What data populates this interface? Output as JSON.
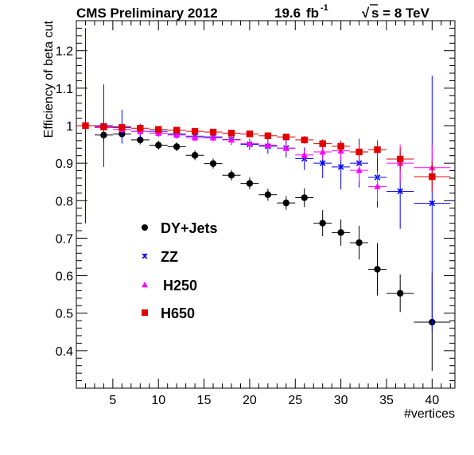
{
  "chart_data": {
    "type": "scatter",
    "title_parts": {
      "experiment": "CMS Preliminary 2012",
      "lumi_value": "19.6",
      "lumi_unit": "fb",
      "lumi_exp": "-1",
      "energy_sqrt": "√",
      "energy_rest": "s = 8 TeV"
    },
    "xlabel": "#vertices",
    "ylabel": "Efficiency of beta cut",
    "xlim": [
      1,
      42.5
    ],
    "ylim": [
      0.3,
      1.28
    ],
    "x_ticks": [
      5,
      10,
      15,
      20,
      25,
      30,
      35,
      40
    ],
    "y_ticks": [
      0.4,
      0.5,
      0.6,
      0.7,
      0.8,
      0.9,
      1,
      1.1,
      1.2
    ],
    "legend_position": "center-left",
    "grid": false,
    "series": [
      {
        "name": "DY+Jets",
        "marker": "circle",
        "color": "#000000",
        "points": [
          {
            "x": 2,
            "y": 1.0,
            "xerr": 1,
            "yerr": 0.26
          },
          {
            "x": 4,
            "y": 0.975,
            "xerr": 1,
            "yerr": 0.02
          },
          {
            "x": 6,
            "y": 0.978,
            "xerr": 1,
            "yerr": 0.012
          },
          {
            "x": 8,
            "y": 0.962,
            "xerr": 1,
            "yerr": 0.012
          },
          {
            "x": 10,
            "y": 0.948,
            "xerr": 1,
            "yerr": 0.012
          },
          {
            "x": 12,
            "y": 0.944,
            "xerr": 1,
            "yerr": 0.012
          },
          {
            "x": 14,
            "y": 0.921,
            "xerr": 1,
            "yerr": 0.013
          },
          {
            "x": 16,
            "y": 0.899,
            "xerr": 1,
            "yerr": 0.013
          },
          {
            "x": 18,
            "y": 0.868,
            "xerr": 1,
            "yerr": 0.014
          },
          {
            "x": 20,
            "y": 0.846,
            "xerr": 1,
            "yerr": 0.016
          },
          {
            "x": 22,
            "y": 0.816,
            "xerr": 1,
            "yerr": 0.016
          },
          {
            "x": 24,
            "y": 0.794,
            "xerr": 1,
            "yerr": 0.018
          },
          {
            "x": 26,
            "y": 0.808,
            "xerr": 1,
            "yerr": 0.025
          },
          {
            "x": 28,
            "y": 0.74,
            "xerr": 1,
            "yerr": 0.035
          },
          {
            "x": 30,
            "y": 0.715,
            "xerr": 1,
            "yerr": 0.035
          },
          {
            "x": 32,
            "y": 0.688,
            "xerr": 1,
            "yerr": 0.045
          },
          {
            "x": 34,
            "y": 0.617,
            "xerr": 1,
            "yerr": 0.07
          },
          {
            "x": 36.5,
            "y": 0.553,
            "xerr": 1.5,
            "yerr": 0.05
          },
          {
            "x": 40,
            "y": 0.476,
            "xerr": 2,
            "yerr": 0.13
          }
        ]
      },
      {
        "name": "ZZ",
        "marker": "star",
        "color": "#0000ff",
        "points": [
          {
            "x": 2,
            "y": 1.0,
            "xerr": 1,
            "yerr": 0.26
          },
          {
            "x": 4,
            "y": 1.0,
            "xerr": 1,
            "yerr": 0.11
          },
          {
            "x": 6,
            "y": 0.997,
            "xerr": 1,
            "yerr": 0.045
          },
          {
            "x": 8,
            "y": 0.985,
            "xerr": 1,
            "yerr": 0.02
          },
          {
            "x": 10,
            "y": 0.985,
            "xerr": 1,
            "yerr": 0.013
          },
          {
            "x": 12,
            "y": 0.978,
            "xerr": 1,
            "yerr": 0.012
          },
          {
            "x": 14,
            "y": 0.972,
            "xerr": 1,
            "yerr": 0.012
          },
          {
            "x": 16,
            "y": 0.97,
            "xerr": 1,
            "yerr": 0.012
          },
          {
            "x": 18,
            "y": 0.963,
            "xerr": 1,
            "yerr": 0.014
          },
          {
            "x": 20,
            "y": 0.95,
            "xerr": 1,
            "yerr": 0.015
          },
          {
            "x": 22,
            "y": 0.945,
            "xerr": 1,
            "yerr": 0.02
          },
          {
            "x": 24,
            "y": 0.94,
            "xerr": 1,
            "yerr": 0.025
          },
          {
            "x": 26,
            "y": 0.912,
            "xerr": 1,
            "yerr": 0.03
          },
          {
            "x": 28,
            "y": 0.9,
            "xerr": 1,
            "yerr": 0.04
          },
          {
            "x": 30,
            "y": 0.89,
            "xerr": 1,
            "yerr": 0.06
          },
          {
            "x": 32,
            "y": 0.9,
            "xerr": 1,
            "yerr": 0.065
          },
          {
            "x": 34,
            "y": 0.862,
            "xerr": 1,
            "yerr": 0.08
          },
          {
            "x": 36.5,
            "y": 0.825,
            "xerr": 1.5,
            "yerr": 0.1
          },
          {
            "x": 40,
            "y": 0.793,
            "xerr": 2,
            "yerr": 0.34
          }
        ]
      },
      {
        "name": "H250",
        "marker": "triangle",
        "color": "#ff00ff",
        "points": [
          {
            "x": 2,
            "y": 1.0,
            "xerr": 1,
            "yerr": 0.01
          },
          {
            "x": 4,
            "y": 0.995,
            "xerr": 1,
            "yerr": 0.01
          },
          {
            "x": 6,
            "y": 0.99,
            "xerr": 1,
            "yerr": 0.01
          },
          {
            "x": 8,
            "y": 0.985,
            "xerr": 1,
            "yerr": 0.01
          },
          {
            "x": 10,
            "y": 0.98,
            "xerr": 1,
            "yerr": 0.01
          },
          {
            "x": 12,
            "y": 0.975,
            "xerr": 1,
            "yerr": 0.01
          },
          {
            "x": 14,
            "y": 0.968,
            "xerr": 1,
            "yerr": 0.01
          },
          {
            "x": 16,
            "y": 0.968,
            "xerr": 1,
            "yerr": 0.01
          },
          {
            "x": 18,
            "y": 0.962,
            "xerr": 1,
            "yerr": 0.01
          },
          {
            "x": 20,
            "y": 0.952,
            "xerr": 1,
            "yerr": 0.01
          },
          {
            "x": 22,
            "y": 0.948,
            "xerr": 1,
            "yerr": 0.01
          },
          {
            "x": 24,
            "y": 0.94,
            "xerr": 1,
            "yerr": 0.012
          },
          {
            "x": 26,
            "y": 0.922,
            "xerr": 1,
            "yerr": 0.015
          },
          {
            "x": 28,
            "y": 0.93,
            "xerr": 1,
            "yerr": 0.02
          },
          {
            "x": 30,
            "y": 0.933,
            "xerr": 1,
            "yerr": 0.025
          },
          {
            "x": 32,
            "y": 0.881,
            "xerr": 1,
            "yerr": 0.03
          },
          {
            "x": 34,
            "y": 0.838,
            "xerr": 1,
            "yerr": 0.04
          },
          {
            "x": 36.5,
            "y": 0.9,
            "xerr": 1.5,
            "yerr": 0.05
          },
          {
            "x": 40,
            "y": 0.888,
            "xerr": 2,
            "yerr": 0.06
          }
        ]
      },
      {
        "name": "H650",
        "marker": "square",
        "color": "#e00000",
        "points": [
          {
            "x": 2,
            "y": 1.0,
            "xerr": 1,
            "yerr": 0.01
          },
          {
            "x": 4,
            "y": 0.997,
            "xerr": 1,
            "yerr": 0.008
          },
          {
            "x": 6,
            "y": 0.995,
            "xerr": 1,
            "yerr": 0.008
          },
          {
            "x": 8,
            "y": 0.993,
            "xerr": 1,
            "yerr": 0.008
          },
          {
            "x": 10,
            "y": 0.99,
            "xerr": 1,
            "yerr": 0.008
          },
          {
            "x": 12,
            "y": 0.988,
            "xerr": 1,
            "yerr": 0.008
          },
          {
            "x": 14,
            "y": 0.985,
            "xerr": 1,
            "yerr": 0.008
          },
          {
            "x": 16,
            "y": 0.983,
            "xerr": 1,
            "yerr": 0.008
          },
          {
            "x": 18,
            "y": 0.98,
            "xerr": 1,
            "yerr": 0.008
          },
          {
            "x": 20,
            "y": 0.978,
            "xerr": 1,
            "yerr": 0.008
          },
          {
            "x": 22,
            "y": 0.973,
            "xerr": 1,
            "yerr": 0.008
          },
          {
            "x": 24,
            "y": 0.97,
            "xerr": 1,
            "yerr": 0.008
          },
          {
            "x": 26,
            "y": 0.962,
            "xerr": 1,
            "yerr": 0.01
          },
          {
            "x": 28,
            "y": 0.952,
            "xerr": 1,
            "yerr": 0.012
          },
          {
            "x": 30,
            "y": 0.945,
            "xerr": 1,
            "yerr": 0.015
          },
          {
            "x": 32,
            "y": 0.93,
            "xerr": 1,
            "yerr": 0.02
          },
          {
            "x": 34,
            "y": 0.936,
            "xerr": 1,
            "yerr": 0.025
          },
          {
            "x": 36.5,
            "y": 0.911,
            "xerr": 1.5,
            "yerr": 0.03
          },
          {
            "x": 40,
            "y": 0.864,
            "xerr": 2,
            "yerr": 0.04
          }
        ]
      }
    ]
  }
}
